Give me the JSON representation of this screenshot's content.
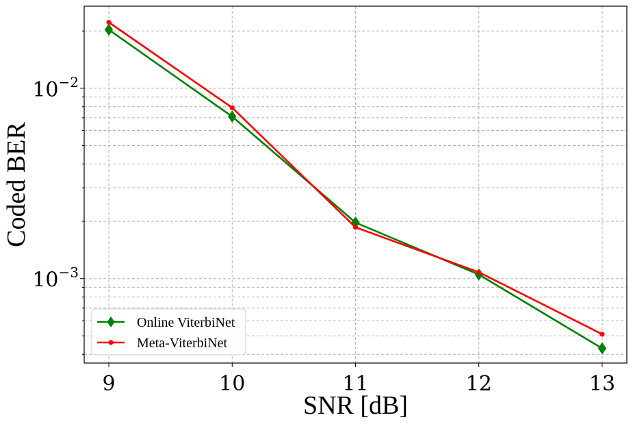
{
  "chart_data": {
    "type": "line",
    "xlabel": "SNR [dB]",
    "ylabel": "Coded BER",
    "yscale": "log",
    "xlim": [
      8.8,
      13.2
    ],
    "ylim": [
      0.00036,
      0.027
    ],
    "x_ticks": [
      9,
      10,
      11,
      12,
      13
    ],
    "x_tick_labels": [
      "9",
      "10",
      "11",
      "12",
      "13"
    ],
    "y_major_ticks": [
      0.001,
      0.01
    ],
    "y_tick_labels": [
      {
        "base": "10",
        "exp": "−3"
      },
      {
        "base": "10",
        "exp": "−2"
      }
    ],
    "y_minor_ticks": [
      0.0004,
      0.0005,
      0.0006,
      0.0007,
      0.0008,
      0.0009,
      0.002,
      0.003,
      0.004,
      0.005,
      0.006,
      0.007,
      0.008,
      0.009,
      0.02
    ],
    "grid": true,
    "legend_position": "lower-left",
    "series": [
      {
        "name": "Online ViterbiNet",
        "color": "#008000",
        "marker": "diamond",
        "x": [
          9,
          10,
          11,
          12,
          13
        ],
        "y": [
          0.0203,
          0.0071,
          0.00197,
          0.00105,
          0.00043
        ]
      },
      {
        "name": "Meta-ViterbiNet",
        "color": "#ff0000",
        "marker": "circle",
        "x": [
          9,
          10,
          11,
          12,
          13
        ],
        "y": [
          0.0222,
          0.0079,
          0.00186,
          0.00108,
          0.00051
        ]
      }
    ]
  }
}
